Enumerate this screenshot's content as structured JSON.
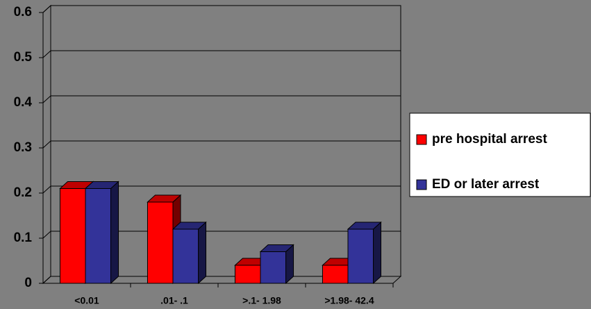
{
  "chart_data": {
    "type": "bar",
    "categories": [
      "<0.01",
      ".01- .1",
      ">.1- 1.98",
      ">1.98- 42.4"
    ],
    "series": [
      {
        "name": "pre hospital arrest",
        "color": "#ff0000",
        "values": [
          0.21,
          0.18,
          0.04,
          0.04
        ]
      },
      {
        "name": "ED or later arrest",
        "color": "#333399",
        "values": [
          0.21,
          0.12,
          0.07,
          0.12
        ]
      }
    ],
    "ylim": [
      0,
      0.6
    ],
    "yticks": [
      0,
      0.1,
      0.2,
      0.3,
      0.4,
      0.5,
      0.6
    ],
    "grid": true,
    "legend": "right"
  }
}
